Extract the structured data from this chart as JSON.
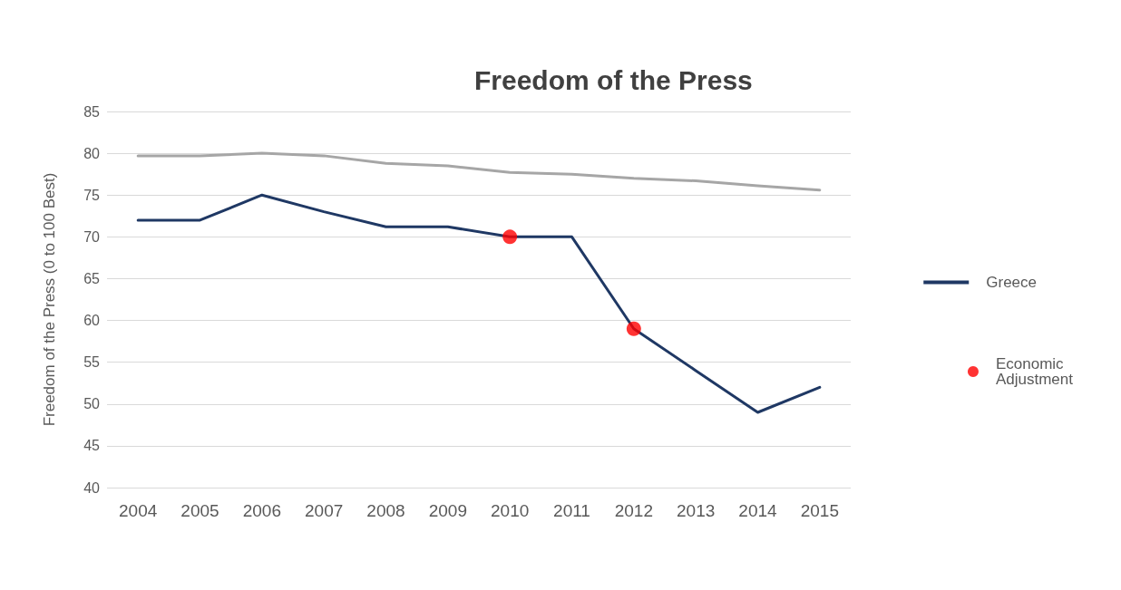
{
  "chart_data": {
    "type": "line",
    "title": "Freedom of the Press",
    "ylabel": "Freedom of the Press (0 to 100 Best)",
    "categories": [
      "2004",
      "2005",
      "2006",
      "2007",
      "2008",
      "2009",
      "2010",
      "2011",
      "2012",
      "2013",
      "2014",
      "2015"
    ],
    "series": [
      {
        "color": "#a6a6a6",
        "values": [
          79.7,
          79.7,
          80,
          79.7,
          78.8,
          78.5,
          77.7,
          77.5,
          77,
          76.7,
          76.1,
          75.6
        ]
      },
      {
        "name": "Greece",
        "color": "#1f3864",
        "values": [
          72,
          72,
          75,
          73,
          71.2,
          71.2,
          70,
          70,
          59,
          54,
          49,
          52
        ]
      },
      {
        "name": "Economic Adjustment",
        "type": "scatter",
        "marker": "circle",
        "color": "#ff0000",
        "values": [
          null,
          null,
          null,
          null,
          null,
          null,
          70,
          null,
          59,
          null,
          null,
          null
        ]
      }
    ],
    "ylim": [
      40,
      85
    ],
    "yticks": [
      40,
      45,
      50,
      55,
      60,
      65,
      70,
      75,
      80,
      85
    ],
    "grid": "y",
    "legend": "right",
    "marker": "none",
    "line_style": "solid"
  }
}
